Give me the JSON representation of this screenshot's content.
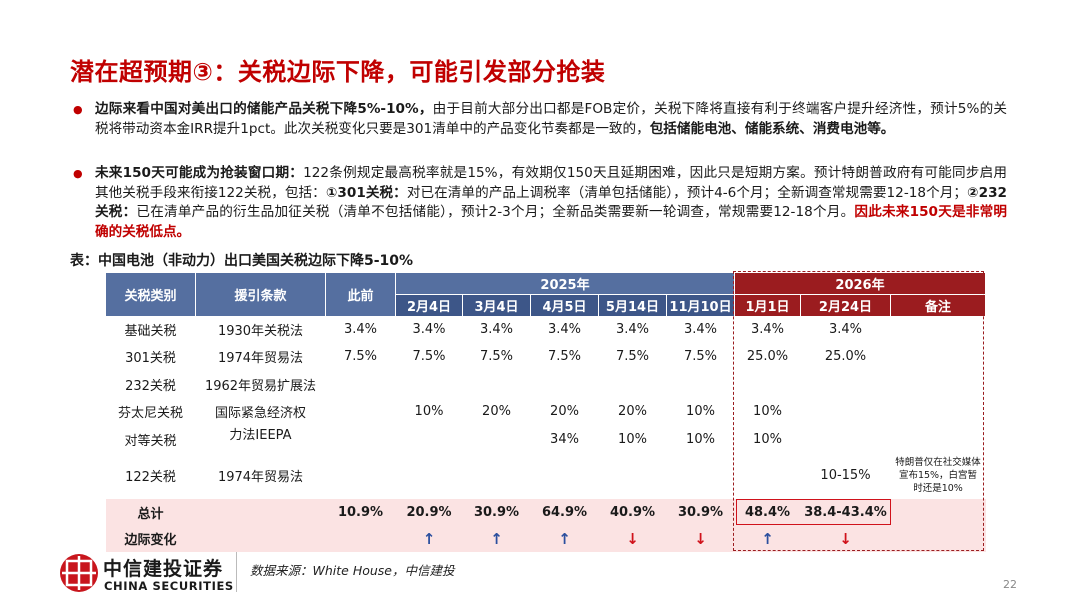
{
  "title": "潜在超预期③：关税边际下降，可能引发部分抢装",
  "bullets": [
    {
      "segments": [
        {
          "text": "边际来看中国对美出口的储能产品关税下降5%-10%，",
          "style": "bold"
        },
        {
          "text": "由于目前大部分出口都是FOB定价，关税下降将直接有利于终端客户提升经济性，预计5%的关税将带动资本金IRR提升1pct。此次关税变化只要是301清单中的产品变化节奏都是一致的，",
          "style": "normal"
        },
        {
          "text": "包括储能电池、储能系统、消费电池等。",
          "style": "bold"
        }
      ]
    },
    {
      "segments": [
        {
          "text": "未来150天可能成为抢装窗口期：",
          "style": "bold"
        },
        {
          "text": "122条例规定最高税率就是15%，有效期仅150天且延期困难，因此只是短期方案。预计特朗普政府有可能同步启用其他关税手段来衔接122关税，包括：",
          "style": "normal"
        },
        {
          "text": "①301关税：",
          "style": "bold"
        },
        {
          "text": "对已在清单的产品上调税率（清单包括储能），预计4-6个月；全新调查常规需要12-18个月；",
          "style": "normal"
        },
        {
          "text": "②232关税：",
          "style": "bold"
        },
        {
          "text": "已在清单产品的衍生品加征关税（清单不包括储能），预计2-3个月；全新品类需要新一轮调查，常规需要12-18个月。",
          "style": "normal"
        },
        {
          "text": "因此未来150天是非常明确的关税低点。",
          "style": "red"
        }
      ]
    }
  ],
  "table": {
    "caption": "表：中国电池（非动力）出口美国关税边际下降5-10%",
    "header": {
      "fixed": [
        "关税类别",
        "援引条款",
        "此前"
      ],
      "groups": [
        {
          "label": "2025年",
          "columns": [
            "2月4日",
            "3月4日",
            "4月5日",
            "5月14日",
            "11月10日"
          ]
        },
        {
          "label": "2026年",
          "columns": [
            "1月1日",
            "2月24日",
            "备注"
          ]
        }
      ]
    },
    "rows": [
      [
        "基础关税",
        "1930年关税法",
        "3.4%",
        "3.4%",
        "3.4%",
        "3.4%",
        "3.4%",
        "3.4%",
        "3.4%",
        "3.4%",
        null
      ],
      [
        "301关税",
        "1974年贸易法",
        "7.5%",
        "7.5%",
        "7.5%",
        "7.5%",
        "7.5%",
        "7.5%",
        "25.0%",
        "25.0%",
        null
      ],
      [
        "232关税",
        "1962年贸易扩展法",
        null,
        null,
        null,
        null,
        null,
        null,
        null,
        null,
        null
      ],
      [
        "芬太尼关税",
        "国际紧急经济权力法IEEPA",
        null,
        "10%",
        "20%",
        "20%",
        "20%",
        "10%",
        "10%",
        null,
        null
      ],
      [
        "对等关税",
        null,
        null,
        null,
        null,
        "34%",
        "10%",
        "10%",
        "10%",
        null,
        null
      ],
      [
        "122关税",
        "1974年贸易法",
        null,
        null,
        null,
        null,
        null,
        null,
        null,
        "10-15%",
        "特朗普仅在社交媒体宣布15%，白宫暂时还是10%"
      ],
      [
        "总计",
        null,
        "10.9%",
        "20.9%",
        "30.9%",
        "64.9%",
        "40.9%",
        "30.9%",
        "48.4%",
        "38.4-43.4%",
        null
      ],
      [
        "边际变化",
        null,
        null,
        "↑",
        "↑",
        "↑",
        "↓",
        "↓",
        "↑",
        "↓",
        null
      ]
    ]
  },
  "footer": {
    "brand": "中信建投证券",
    "brand_en": "CHINA SECURITIES",
    "source": "数据来源：White House，中信建投",
    "page": "22"
  }
}
